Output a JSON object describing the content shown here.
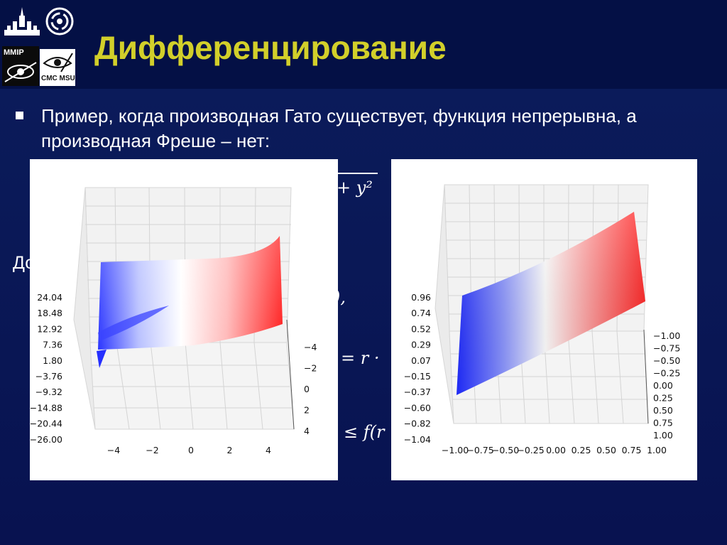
{
  "slide": {
    "title": "Дифференцирование",
    "bullet": "Пример, когда производная Гато существует, функция непрерывна, а производная Фреше – нет:",
    "logo_mmip": "MMIP",
    "logo_cmc": "CMC MSU"
  },
  "obscured_fragments": {
    "formula_tail": "+ y²",
    "left_letters": "До",
    "comma_fragment": "),",
    "r_fragment": "= r ·",
    "f_fragment": "≤ f(r"
  },
  "colors": {
    "title": "#d2cf2a",
    "surface_low": "#1f2bff",
    "surface_mid": "#ffffff",
    "surface_high": "#ff1f1f"
  },
  "chart_data": [
    {
      "type": "surface",
      "title": "",
      "z_ticks": [
        "24.04",
        "18.48",
        "12.92",
        "7.36",
        "1.80",
        "−3.76",
        "−9.32",
        "−14.88",
        "−20.44",
        "−26.00"
      ],
      "x_ticks": [
        "−4",
        "−2",
        "0",
        "2",
        "4"
      ],
      "y_ticks": [
        "−4",
        "−2",
        "0",
        "2",
        "4"
      ],
      "zlim": [
        -26.0,
        24.04
      ],
      "xlim": [
        -5,
        5
      ],
      "ylim": [
        -5,
        5
      ],
      "grid": true
    },
    {
      "type": "surface",
      "title": "",
      "z_ticks": [
        "0.96",
        "0.74",
        "0.52",
        "0.29",
        "0.07",
        "−0.15",
        "−0.37",
        "−0.60",
        "−0.82",
        "−1.04"
      ],
      "x_ticks": [
        "−1.00",
        "−0.75",
        "−0.50",
        "−0.25",
        "0.00",
        "0.25",
        "0.50",
        "0.75",
        "1.00"
      ],
      "y_ticks": [
        "−1.00",
        "−0.75",
        "−0.50",
        "−0.25",
        "0.00",
        "0.25",
        "0.50",
        "0.75",
        "1.00"
      ],
      "zlim": [
        -1.04,
        0.96
      ],
      "xlim": [
        -1,
        1
      ],
      "ylim": [
        -1,
        1
      ],
      "grid": true
    }
  ]
}
